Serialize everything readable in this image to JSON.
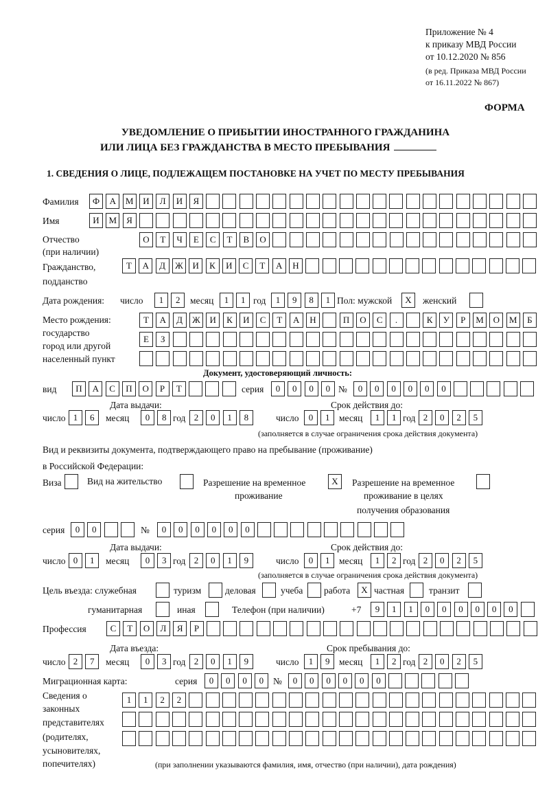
{
  "header": {
    "appendix": "Приложение № 4",
    "order": "к приказу МВД России",
    "order_date": "от 10.12.2020 № 856",
    "revision": "(в ред. Приказа МВД России",
    "revision_date": "от 16.11.2022 № 867)",
    "form_label": "ФОРМА"
  },
  "title": {
    "line1": "УВЕДОМЛЕНИЕ О ПРИБЫТИИ ИНОСТРАННОГО ГРАЖДАНИНА",
    "line2": "ИЛИ ЛИЦА БЕЗ ГРАЖДАНСТВА В МЕСТО ПРЕБЫВАНИЯ"
  },
  "section1": {
    "heading": "1. СВЕДЕНИЯ О ЛИЦЕ, ПОДЛЕЖАЩЕМ ПОСТАНОВКЕ НА УЧЕТ ПО МЕСТУ ПРЕБЫВАНИЯ",
    "labels": {
      "surname": "Фамилия",
      "name": "Имя",
      "patronymic": "Отчество",
      "patronymic_note": "(при наличии)",
      "citizenship": "Гражданство,",
      "citizenship2": "подданство",
      "birth_date": "Дата рождения:",
      "day": "число",
      "month": "месяц",
      "year": "год",
      "sex": "Пол: мужской",
      "female": "женский",
      "birthplace1": "Место рождения:",
      "birthplace2": "государство",
      "birthplace3": "город или другой",
      "birthplace4": "населенный пункт",
      "id_doc": "Документ, удостоверяющий личность:",
      "kind": "вид",
      "series": "серия",
      "number": "№",
      "issue_date": "Дата выдачи:",
      "valid_until": "Срок действия до:",
      "validity_note": "(заполняется в случае ограничения срока действия документа)",
      "right_doc1": "Вид и реквизиты документа, подтверждающего право на пребывание (проживание)",
      "right_doc2": "в Российской Федерации:",
      "visa": "Виза",
      "residence": "Вид на жительство",
      "temp_permit1": "Разрешение на временное",
      "temp_permit2": "проживание",
      "temp_edu1": "Разрешение на временное",
      "temp_edu2": "проживание в целях",
      "temp_edu3": "получения образования",
      "purpose": "Цель въезда: служебная",
      "tourism": "туризм",
      "business": "деловая",
      "study": "учеба",
      "work": "работа",
      "private": "частная",
      "transit": "транзит",
      "humanitarian": "гуманитарная",
      "other": "иная",
      "phone": "Телефон (при наличии)",
      "phone_prefix": "+7",
      "profession": "Профессия",
      "entry_date": "Дата въезда:",
      "stay_until": "Срок пребывания до:",
      "migration_card": "Миграционная карта:",
      "reps1": "Сведения о",
      "reps2": "законных",
      "reps3": "представителях",
      "reps4": "(родителях,",
      "reps5": "усыновителях,",
      "reps6": "попечителях)",
      "reps_note": "(при заполнении указываются фамилия, имя, отчество (при наличии), дата рождения)"
    },
    "values": {
      "surname": "ФАМИЛИЯ",
      "name": "ИМЯ",
      "patronymic": "ОТЧЕСТВО",
      "citizenship": "ТАДЖИКИСТАН",
      "birth_day": "12",
      "birth_month": "11",
      "birth_year": "1981",
      "male": "X",
      "female": "",
      "birthplace_line1": "ТАДЖИКИСТАН ПОС. КУРМОМБ",
      "birthplace_line2": "ЕЗ",
      "birthplace_line3": "",
      "id_kind": "ПАСПОРТ",
      "id_series": "0000",
      "id_number": "000000",
      "id_issue_day": "16",
      "id_issue_month": "08",
      "id_issue_year": "2018",
      "id_valid_day": "01",
      "id_valid_month": "11",
      "id_valid_year": "2025",
      "visa": "",
      "residence": "",
      "temp_permit": "X",
      "temp_edu": "",
      "right_series": "00",
      "right_number": "000000",
      "right_issue_day": "01",
      "right_issue_month": "03",
      "right_issue_year": "2019",
      "right_valid_day": "01",
      "right_valid_month": "12",
      "right_valid_year": "2025",
      "purpose_official": "",
      "purpose_tourism": "",
      "purpose_business": "",
      "purpose_study": "",
      "purpose_work": "X",
      "purpose_private": "",
      "purpose_transit": "",
      "purpose_humanitarian": "",
      "purpose_other": "",
      "phone": "911000000",
      "profession": "СТОЛЯР",
      "entry_day": "27",
      "entry_month": "03",
      "entry_year": "2019",
      "stay_day": "19",
      "stay_month": "12",
      "stay_year": "2025",
      "mig_series": "0000",
      "mig_number": "000000",
      "reps_line1": "1122",
      "reps_line2": "",
      "reps_line3": ""
    }
  }
}
